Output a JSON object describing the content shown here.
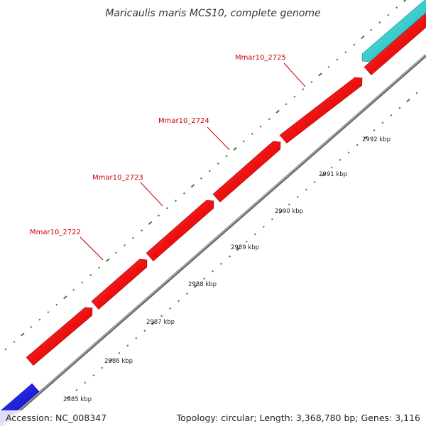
{
  "title": "Maricaulis maris MCS10, complete genome",
  "footer": {
    "accession": "Accession: NC_008347",
    "summary": "Topology: circular; Length: 3,368,780 bp; Genes: 3,116"
  },
  "colors": {
    "gene_forward": "#ee1111",
    "gene_cyan": "#22cccc",
    "gene_blue": "#1a1aee",
    "backbone": "#888888",
    "ticks": "#2a8a2a",
    "label": "#cc0000"
  },
  "genes": [
    {
      "name": "Mmar10_2722",
      "strand": "+"
    },
    {
      "name": "Mmar10_2723",
      "strand": "+"
    },
    {
      "name": "Mmar10_2724",
      "strand": "+"
    },
    {
      "name": "Mmar10_2725",
      "strand": "+"
    }
  ],
  "other_features": [
    {
      "color": "gene_cyan",
      "strand": "+"
    },
    {
      "color": "gene_blue",
      "strand": "-"
    }
  ],
  "scale_labels": [
    "2985 kbp",
    "2986 kbp",
    "2987 kbp",
    "2988 kbp",
    "2989 kbp",
    "2990 kbp",
    "2991 kbp",
    "2992 kbp"
  ]
}
